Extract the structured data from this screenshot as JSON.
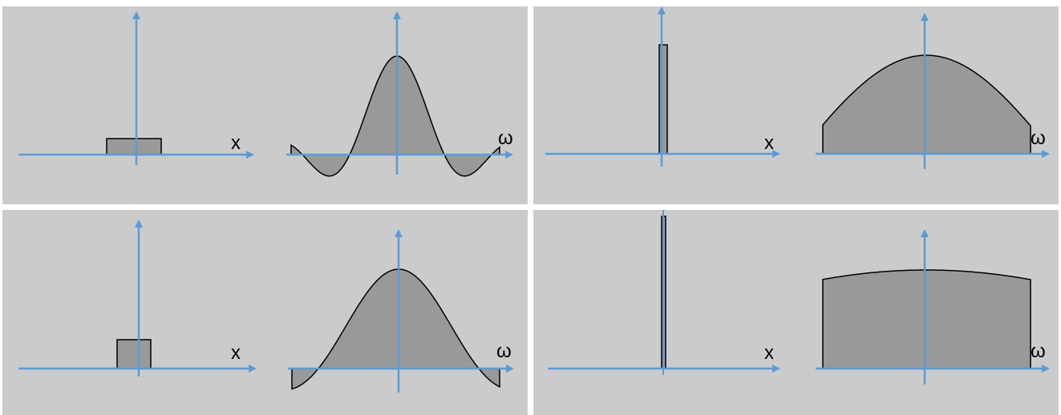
{
  "panels": [
    {
      "id": "wide-box-top-left",
      "spatial": {
        "axis_label": "x",
        "shape": "box"
      },
      "frequency": {
        "axis_label": "ω",
        "shape": "sinc"
      }
    },
    {
      "id": "narrow-box-top-right",
      "spatial": {
        "axis_label": "x",
        "shape": "box"
      },
      "frequency": {
        "axis_label": "ω",
        "shape": "broad-sinc"
      }
    },
    {
      "id": "medium-box-bottom-left",
      "spatial": {
        "axis_label": "x",
        "shape": "box"
      },
      "frequency": {
        "axis_label": "ω",
        "shape": "sinc"
      }
    },
    {
      "id": "impulse-bottom-right",
      "spatial": {
        "axis_label": "x",
        "shape": "impulse"
      },
      "frequency": {
        "axis_label": "ω",
        "shape": "near-constant"
      }
    }
  ],
  "colors": {
    "panel_background": "#cbcbcb",
    "axis": "#5b9bd5",
    "fill": "#999999",
    "curve": "#000000"
  }
}
